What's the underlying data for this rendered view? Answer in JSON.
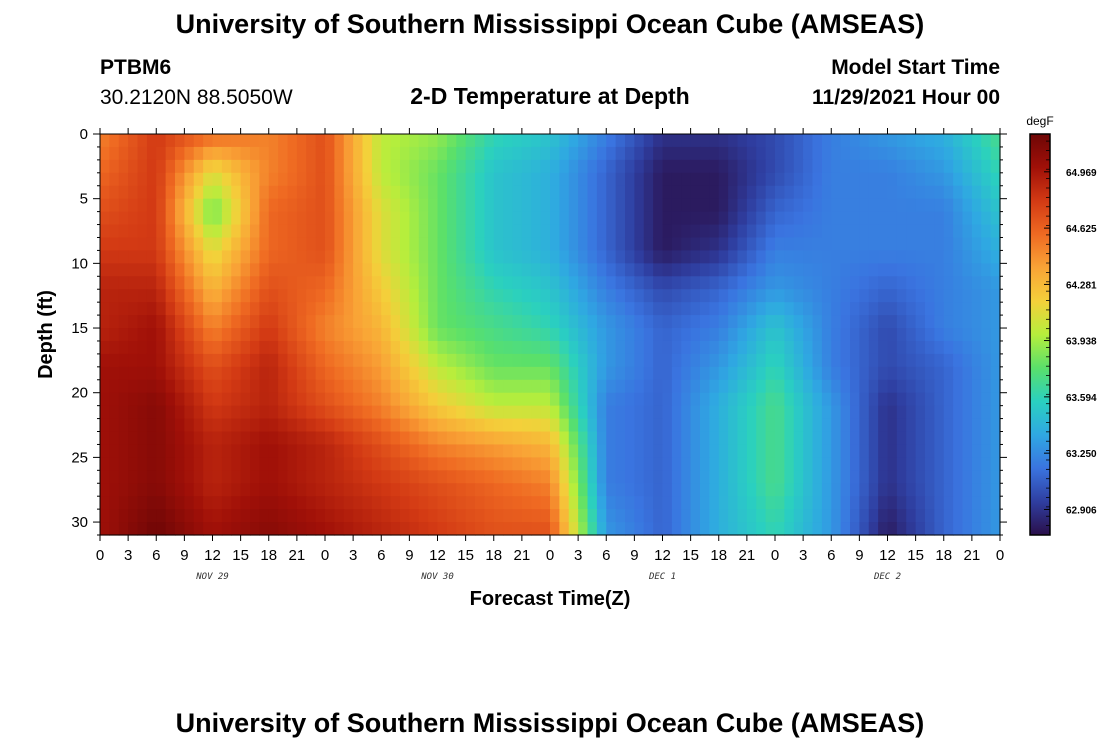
{
  "header": {
    "title": "University of Southern Mississippi Ocean Cube (AMSEAS)",
    "station": "PTBM6",
    "coords": "30.2120N  88.5050W",
    "chart_title": "2-D Temperature at Depth",
    "model_start_label": "Model Start Time",
    "model_start_value": "11/29/2021 Hour 00"
  },
  "footer": {
    "title": "University of Southern Mississippi Ocean Cube (AMSEAS)"
  },
  "chart_data": {
    "type": "heatmap",
    "title": "2-D Temperature at Depth",
    "xlabel": "Forecast Time(Z)",
    "ylabel": "Depth (ft)",
    "xlim": [
      0,
      96
    ],
    "ylim": [
      0,
      31
    ],
    "x_tick_labels": [
      "0",
      "3",
      "6",
      "9",
      "12",
      "15",
      "18",
      "21",
      "0",
      "3",
      "6",
      "9",
      "12",
      "15",
      "18",
      "21",
      "0",
      "3",
      "6",
      "9",
      "12",
      "15",
      "18",
      "21",
      "0",
      "3",
      "6",
      "9",
      "12",
      "15",
      "18",
      "21",
      "0"
    ],
    "y_ticks": [
      0,
      5,
      10,
      15,
      20,
      25,
      30
    ],
    "y_tick_labels": [
      "0",
      "5",
      "10",
      "15",
      "20",
      "25",
      "30"
    ],
    "date_labels": [
      {
        "label": "NOV 29",
        "hour": 12
      },
      {
        "label": "NOV 30",
        "hour": 36
      },
      {
        "label": "DEC 1",
        "hour": 60
      },
      {
        "label": "DEC 2",
        "hour": 84
      }
    ],
    "colorbar": {
      "unit": "degF",
      "min": 62.75,
      "max": 65.2,
      "tick_values": [
        64.969,
        64.625,
        64.281,
        63.938,
        63.594,
        63.25,
        62.906
      ],
      "tick_labels": [
        "64.969",
        "64.625",
        "64.281",
        "63.938",
        "63.594",
        "63.250",
        "62.906"
      ],
      "colors": [
        "#2a0f4a",
        "#2f3ea0",
        "#3a74e0",
        "#2fa8e2",
        "#2ad0c0",
        "#5ae06a",
        "#b6ee3c",
        "#f4d03a",
        "#f9a336",
        "#ef6a22",
        "#d33a14",
        "#a01008",
        "#6e0606"
      ]
    },
    "depths_ft": [
      0,
      3,
      6,
      9,
      12,
      15,
      18,
      21,
      24,
      27,
      31
    ],
    "hours": [
      0,
      6,
      12,
      18,
      24,
      30,
      36,
      42,
      48,
      54,
      60,
      66,
      72,
      78,
      84,
      90,
      96
    ],
    "temperature_degF": [
      [
        64.5,
        64.8,
        64.6,
        64.5,
        64.7,
        64.0,
        63.9,
        63.6,
        63.5,
        63.2,
        62.9,
        62.9,
        63.0,
        63.2,
        63.3,
        63.4,
        63.7
      ],
      [
        64.6,
        64.8,
        64.1,
        64.5,
        64.7,
        64.0,
        63.8,
        63.5,
        63.4,
        63.1,
        62.8,
        62.8,
        63.0,
        63.2,
        63.2,
        63.3,
        63.6
      ],
      [
        64.7,
        64.8,
        63.8,
        64.6,
        64.7,
        64.1,
        63.8,
        63.5,
        63.4,
        63.1,
        62.8,
        62.8,
        63.1,
        63.2,
        63.2,
        63.2,
        63.5
      ],
      [
        64.8,
        64.8,
        64.1,
        64.6,
        64.7,
        64.1,
        63.8,
        63.5,
        63.4,
        63.1,
        62.8,
        62.9,
        63.2,
        63.2,
        63.2,
        63.2,
        63.4
      ],
      [
        64.9,
        64.9,
        64.3,
        64.7,
        64.6,
        64.2,
        63.8,
        63.6,
        63.5,
        63.2,
        63.0,
        63.1,
        63.3,
        63.2,
        63.1,
        63.2,
        63.3
      ],
      [
        64.9,
        65.0,
        64.5,
        64.8,
        64.5,
        64.3,
        63.8,
        63.7,
        63.6,
        63.3,
        63.1,
        63.2,
        63.5,
        63.2,
        63.0,
        63.2,
        63.3
      ],
      [
        65.0,
        65.0,
        64.7,
        64.9,
        64.6,
        64.4,
        64.0,
        63.8,
        63.8,
        63.3,
        63.1,
        63.3,
        63.6,
        63.2,
        63.0,
        63.1,
        63.3
      ],
      [
        65.0,
        65.1,
        64.8,
        64.9,
        64.7,
        64.5,
        64.2,
        64.0,
        64.0,
        63.2,
        63.1,
        63.4,
        63.7,
        63.3,
        62.9,
        63.1,
        63.3
      ],
      [
        65.0,
        65.1,
        64.9,
        65.0,
        64.9,
        64.7,
        64.5,
        64.4,
        64.3,
        63.2,
        63.1,
        63.4,
        63.7,
        63.3,
        62.9,
        63.1,
        63.3
      ],
      [
        65.0,
        65.1,
        64.9,
        65.0,
        64.9,
        64.8,
        64.7,
        64.6,
        64.5,
        63.2,
        63.1,
        63.4,
        63.7,
        63.3,
        62.9,
        63.1,
        63.3
      ],
      [
        65.0,
        65.2,
        65.0,
        65.1,
        65.0,
        64.9,
        64.8,
        64.7,
        64.7,
        63.3,
        63.1,
        63.4,
        63.6,
        63.3,
        62.8,
        63.1,
        63.3
      ]
    ]
  }
}
